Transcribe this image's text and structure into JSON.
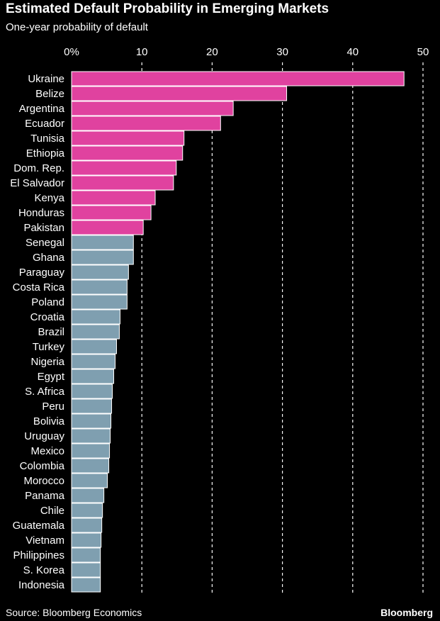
{
  "chart_data": {
    "type": "bar",
    "orientation": "horizontal",
    "title": "Estimated Default Probability in Emerging Markets",
    "subtitle": "One-year probability of default",
    "xlabel": "",
    "ylabel": "",
    "xlim": [
      0,
      50
    ],
    "xticks": [
      0,
      10,
      20,
      30,
      40,
      50
    ],
    "xtick_labels": [
      "0%",
      "10",
      "20",
      "30",
      "40",
      "50"
    ],
    "grid": "vertical dashed",
    "categories": [
      "Ukraine",
      "Belize",
      "Argentina",
      "Ecuador",
      "Tunisia",
      "Ethiopia",
      "Dom. Rep.",
      "El Salvador",
      "Kenya",
      "Honduras",
      "Pakistan",
      "Senegal",
      "Ghana",
      "Paraguay",
      "Costa Rica",
      "Poland",
      "Croatia",
      "Brazil",
      "Turkey",
      "Nigeria",
      "Egypt",
      "S. Africa",
      "Peru",
      "Bolivia",
      "Uruguay",
      "Mexico",
      "Colombia",
      "Morocco",
      "Panama",
      "Chile",
      "Guatemala",
      "Vietnam",
      "Philippines",
      "S. Korea",
      "Indonesia"
    ],
    "values": [
      47.3,
      30.6,
      23.0,
      21.2,
      16.0,
      15.8,
      14.9,
      14.5,
      11.9,
      11.3,
      10.2,
      8.8,
      8.8,
      8.1,
      7.9,
      7.9,
      6.9,
      6.8,
      6.4,
      6.2,
      6.0,
      5.8,
      5.7,
      5.6,
      5.5,
      5.4,
      5.3,
      5.1,
      4.6,
      4.4,
      4.3,
      4.2,
      4.1,
      4.1,
      4.1
    ],
    "highlight_count": 11,
    "colors": {
      "highlight": "#e0429f",
      "normal": "#7f9fb0",
      "grid": "#ffffff",
      "background": "#000000"
    }
  },
  "footer": {
    "source": "Source: Bloomberg Economics",
    "brand": "Bloomberg"
  }
}
